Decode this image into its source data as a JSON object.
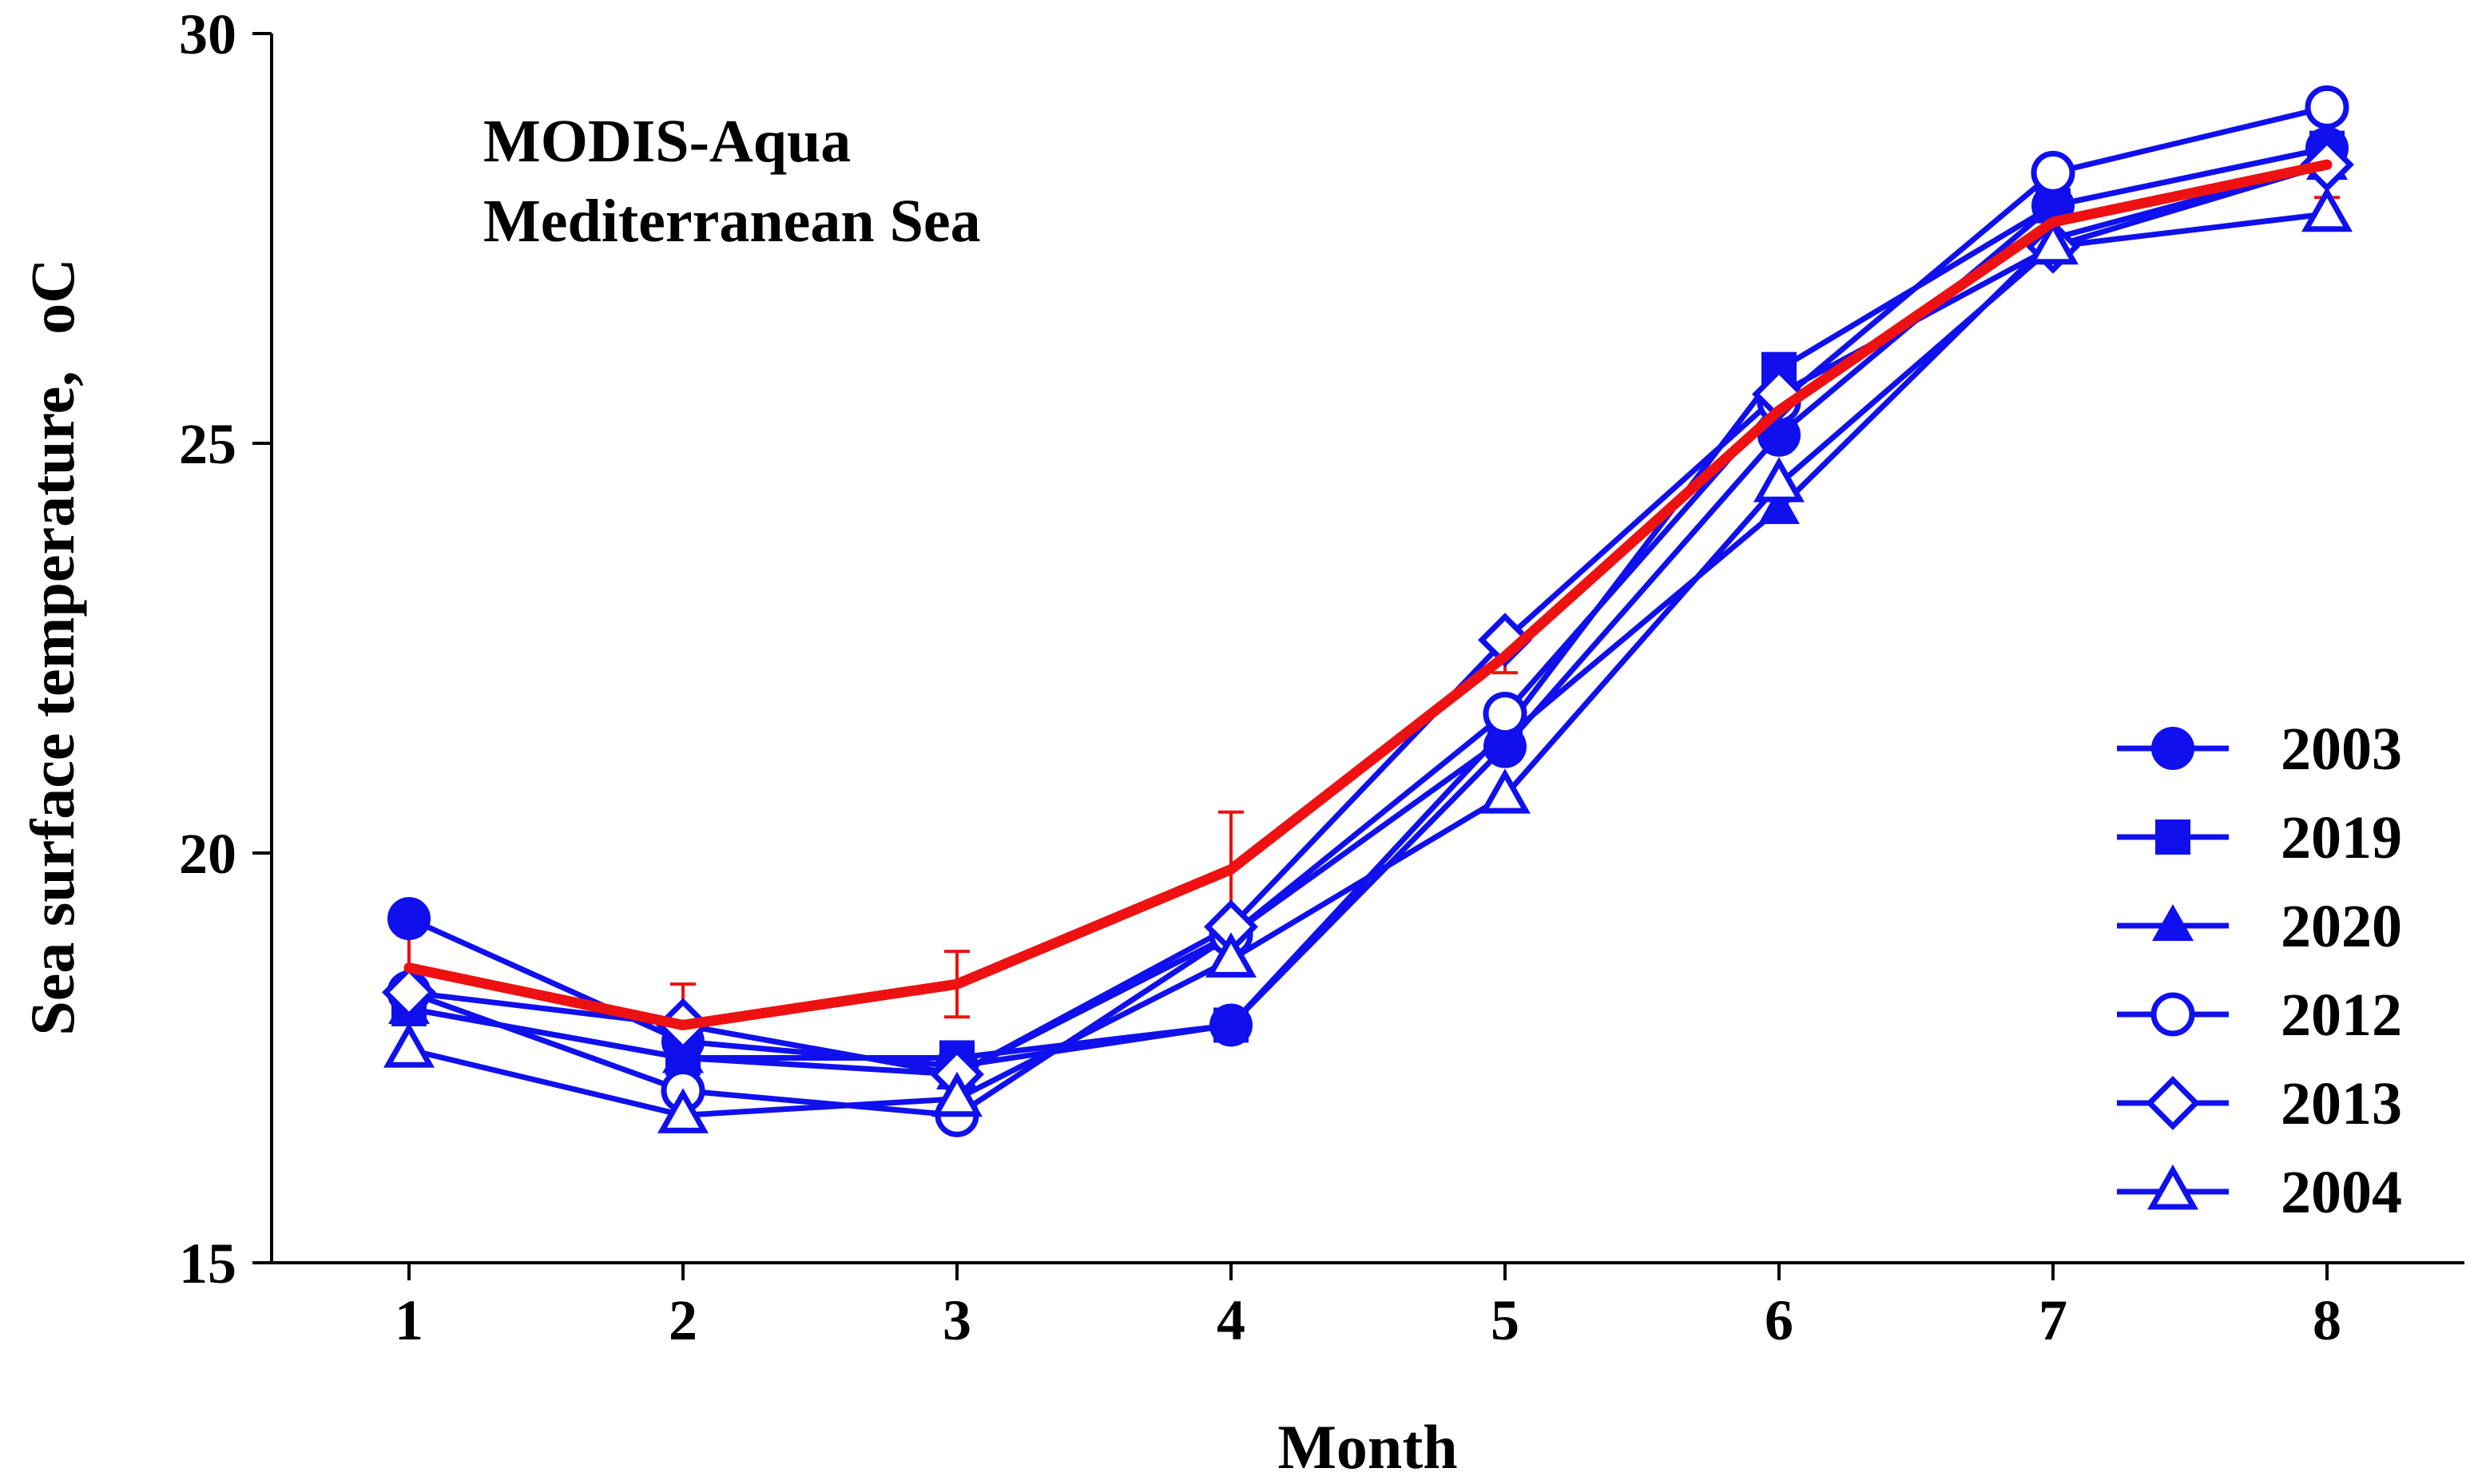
{
  "chart_data": {
    "type": "line",
    "annotation_lines": [
      "MODIS-Aqua",
      "Mediterranean Sea"
    ],
    "xlabel": "Month",
    "ylabel": "Sea surface temperature,",
    "ylabel_unit": "oC",
    "x": [
      1,
      2,
      3,
      4,
      5,
      6,
      7,
      8
    ],
    "x_tick_labels": [
      "1",
      "2",
      "3",
      "4",
      "5",
      "6",
      "7",
      "8"
    ],
    "y_ticks": [
      15,
      20,
      25,
      30
    ],
    "y_tick_labels": [
      "15",
      "20",
      "25",
      "30"
    ],
    "xlim": [
      0.5,
      8.5
    ],
    "ylim": [
      15,
      30
    ],
    "grid": false,
    "legend_position": "bottom-right",
    "series": [
      {
        "name": "2003",
        "marker": "circle-filled",
        "color": "#1010ee",
        "x": [
          1,
          2,
          3,
          4,
          5,
          6,
          7,
          8
        ],
        "values": [
          19.2,
          17.7,
          17.4,
          17.9,
          21.3,
          25.1,
          27.9,
          28.6
        ]
      },
      {
        "name": "2019",
        "marker": "square-filled",
        "color": "#1010ee",
        "x": [
          1,
          2,
          3,
          4,
          5,
          6,
          7,
          8
        ],
        "values": [
          18.1,
          17.5,
          17.5,
          17.9,
          21.5,
          25.9,
          27.9,
          28.6
        ]
      },
      {
        "name": "2020",
        "marker": "triangle-filled",
        "color": "#1010ee",
        "x": [
          1,
          2,
          3,
          4,
          5,
          6,
          7,
          8
        ],
        "values": [
          18.1,
          17.5,
          17.3,
          19.0,
          21.4,
          24.2,
          27.5,
          28.4
        ]
      },
      {
        "name": "2012",
        "marker": "circle-open",
        "color": "#1010ee",
        "x": [
          1,
          2,
          3,
          4,
          5,
          6,
          7,
          8
        ],
        "values": [
          18.3,
          17.1,
          16.8,
          19.0,
          21.7,
          25.5,
          28.3,
          29.1
        ]
      },
      {
        "name": "2013",
        "marker": "diamond-open",
        "color": "#1010ee",
        "x": [
          1,
          2,
          3,
          4,
          5,
          6,
          7,
          8
        ],
        "values": [
          18.3,
          17.9,
          17.3,
          19.1,
          22.6,
          25.6,
          27.4,
          28.4
        ]
      },
      {
        "name": "2004",
        "marker": "triangle-open",
        "color": "#1010ee",
        "x": [
          1,
          2,
          3,
          4,
          5,
          6,
          7,
          8
        ],
        "values": [
          17.6,
          16.8,
          17.0,
          18.7,
          20.7,
          24.5,
          27.4,
          27.8
        ]
      }
    ],
    "mean_series": {
      "color": "#ee1111",
      "x": [
        1,
        2,
        3,
        4,
        5,
        6,
        7,
        8
      ],
      "values": [
        18.6,
        17.9,
        18.4,
        19.8,
        22.4,
        25.4,
        27.7,
        28.4
      ],
      "error": [
        0.4,
        0.5,
        0.4,
        0.7,
        0.2,
        0.5,
        0.5,
        0.4
      ]
    }
  }
}
